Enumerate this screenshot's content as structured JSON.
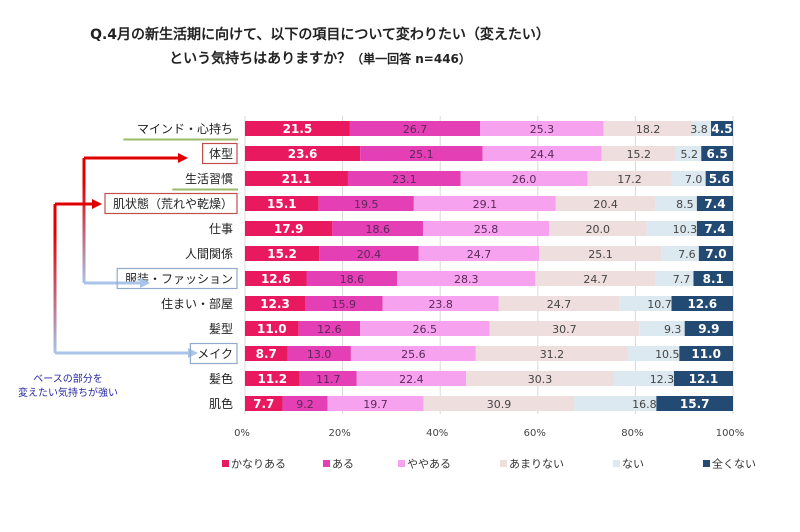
{
  "chart_data": {
    "type": "bar",
    "orientation": "horizontal",
    "stacked": true,
    "title_line1": "Q.4月の新生活期に向けて、以下の項目について変わりたい（変えたい）",
    "title_line2": "という気持ちはありますか？",
    "title_note": "（単一回答  n=446）",
    "categories": [
      "マインド・心持ち",
      "体型",
      "生活習慣",
      "肌状態（荒れや乾燥）",
      "仕事",
      "人間関係",
      "服装・ファッション",
      "住まい・部屋",
      "髪型",
      "メイク",
      "髪色",
      "肌色"
    ],
    "series": [
      {
        "name": "かなりある",
        "color": "#e8195f",
        "label_color": "#ffffff",
        "values": [
          21.5,
          23.6,
          21.1,
          15.1,
          17.9,
          15.2,
          12.6,
          12.3,
          11.0,
          8.7,
          11.2,
          7.7
        ]
      },
      {
        "name": "ある",
        "color": "#e43fb5",
        "label_color": "#5a2a5a",
        "values": [
          26.7,
          25.1,
          23.1,
          19.5,
          18.6,
          20.4,
          18.6,
          15.9,
          12.6,
          13.0,
          11.7,
          9.2
        ]
      },
      {
        "name": "ややある",
        "color": "#f7a2ee",
        "label_color": "#5a2a5a",
        "values": [
          25.3,
          24.4,
          26.0,
          29.1,
          25.8,
          24.7,
          28.3,
          23.8,
          26.5,
          25.6,
          22.4,
          19.7
        ]
      },
      {
        "name": "あまりない",
        "color": "#efdede",
        "label_color": "#444444",
        "values": [
          18.2,
          15.2,
          17.2,
          20.4,
          20.0,
          25.1,
          24.7,
          24.7,
          30.7,
          31.2,
          30.3,
          30.9
        ]
      },
      {
        "name": "ない",
        "color": "#dde9f0",
        "label_color": "#444444",
        "values": [
          3.8,
          5.2,
          7.0,
          8.5,
          10.3,
          7.6,
          7.7,
          10.7,
          9.3,
          10.5,
          12.3,
          16.8
        ]
      },
      {
        "name": "全くない",
        "color": "#234a73",
        "label_color": "#ffffff",
        "values": [
          4.5,
          6.5,
          5.6,
          7.4,
          7.4,
          7.0,
          8.1,
          12.6,
          9.9,
          11.0,
          12.1,
          15.7
        ]
      }
    ],
    "xlim": [
      0,
      100
    ],
    "x_ticks": [
      "0%",
      "20%",
      "40%",
      "60%",
      "80%",
      "100%"
    ],
    "grid": true,
    "legend_position": "bottom",
    "highlight_underline": [
      "マインド・心持ち",
      "生活習慣"
    ],
    "highlight_box_red": [
      "体型",
      "肌状態（荒れや乾燥）"
    ],
    "highlight_box_blue": [
      "服装・ファッション",
      "メイク"
    ],
    "annotation_line1": "ベースの部分を",
    "annotation_line2": "変えたい気持ちが強い"
  }
}
